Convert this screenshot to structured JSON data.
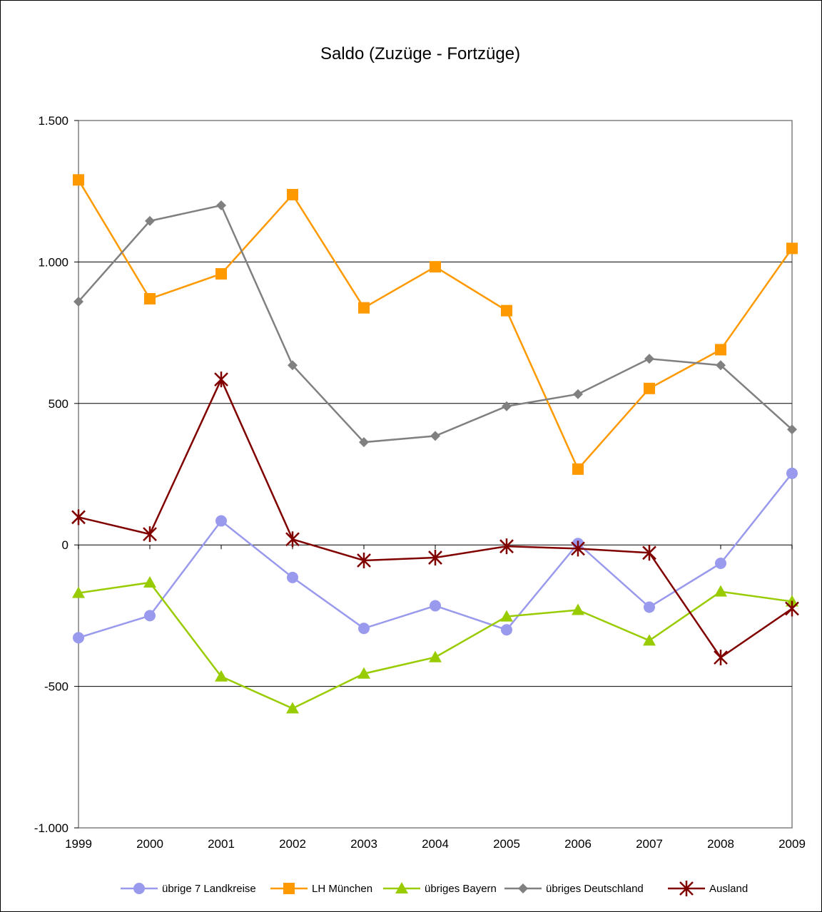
{
  "chart_data": {
    "type": "line",
    "title": "Saldo (Zuzüge - Fortzüge)",
    "xlabel": "",
    "ylabel": "",
    "categories": [
      "1999",
      "2000",
      "2001",
      "2002",
      "2003",
      "2004",
      "2005",
      "2006",
      "2007",
      "2008",
      "2009"
    ],
    "ylim": [
      -1000,
      1500
    ],
    "yticks": [
      -1000,
      -500,
      0,
      500,
      1000,
      1500
    ],
    "ytick_labels": [
      "-1.000",
      "-500",
      "0",
      "500",
      "1.000",
      "1.500"
    ],
    "grid": "horizontal",
    "legend_position": "bottom",
    "series": [
      {
        "name": "übrige 7 Landkreise",
        "color": "#9999ee",
        "marker": "circle",
        "values": [
          -328,
          -250,
          85,
          -115,
          -295,
          -215,
          -300,
          5,
          -220,
          -65,
          253
        ]
      },
      {
        "name": "LH München",
        "color": "#ff9900",
        "marker": "square",
        "values": [
          1290,
          870,
          958,
          1238,
          838,
          983,
          828,
          268,
          553,
          690,
          1048
        ]
      },
      {
        "name": "übriges Bayern",
        "color": "#99cc00",
        "marker": "triangle",
        "values": [
          -170,
          -133,
          -465,
          -578,
          -455,
          -397,
          -253,
          -230,
          -338,
          -165,
          -200
        ]
      },
      {
        "name": "übriges Deutschland",
        "color": "#808080",
        "marker": "diamond",
        "values": [
          860,
          1145,
          1200,
          635,
          363,
          385,
          490,
          533,
          658,
          635,
          408
        ]
      },
      {
        "name": "Ausland",
        "color": "#800000",
        "marker": "star",
        "values": [
          98,
          38,
          585,
          20,
          -55,
          -45,
          -5,
          -13,
          -28,
          -398,
          -225
        ]
      }
    ]
  }
}
